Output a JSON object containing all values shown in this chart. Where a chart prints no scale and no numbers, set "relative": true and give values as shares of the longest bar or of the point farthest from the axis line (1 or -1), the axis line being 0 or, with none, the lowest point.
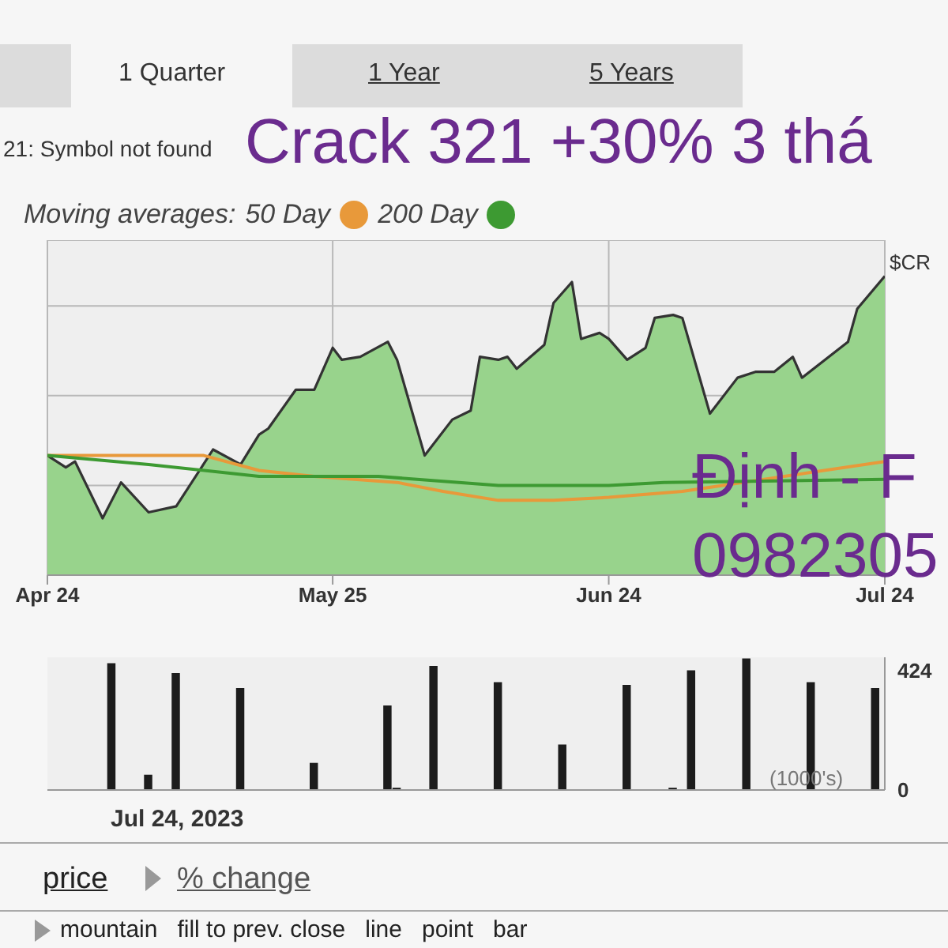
{
  "chart_data": [
    {
      "type": "area",
      "title": "Crack 321 +30% 3 thá",
      "relative": true,
      "legend_title": "Moving averages:",
      "legend": "top left",
      "grid": true,
      "marker": "none",
      "xlim": [
        "2023-04-24",
        "2023-07-24"
      ],
      "xticks": [
        {
          "value": "2023-04-24",
          "label": "Apr 24"
        },
        {
          "value": "2023-05-25",
          "label": "May 25"
        },
        {
          "value": "2023-06-24",
          "label": "Jun 24"
        },
        {
          "value": "2023-07-24",
          "label": "Jul 24"
        }
      ],
      "annotations": [
        "1 Quarter",
        "1 Year",
        "5 Years",
        "21: Symbol not found",
        "Định - F",
        "0982305"
      ],
      "series": [
        {
          "name": "$CR",
          "color": "#333333",
          "x": [
            "2023-04-24",
            "2023-04-26",
            "2023-04-27",
            "2023-04-30",
            "2023-05-02",
            "2023-05-05",
            "2023-05-08",
            "2023-05-12",
            "2023-05-15",
            "2023-05-17",
            "2023-05-18",
            "2023-05-21",
            "2023-05-23",
            "2023-05-25",
            "2023-05-26",
            "2023-05-28",
            "2023-05-31",
            "2023-06-01",
            "2023-06-04",
            "2023-06-07",
            "2023-06-09",
            "2023-06-10",
            "2023-06-12",
            "2023-06-13",
            "2023-06-14",
            "2023-06-17",
            "2023-06-18",
            "2023-06-20",
            "2023-06-21",
            "2023-06-23",
            "2023-06-24",
            "2023-06-26",
            "2023-06-28",
            "2023-06-29",
            "2023-07-01",
            "2023-07-02",
            "2023-07-05",
            "2023-07-08",
            "2023-07-10",
            "2023-07-12",
            "2023-07-14",
            "2023-07-15",
            "2023-07-20",
            "2023-07-21",
            "2023-07-24"
          ],
          "values": [
            0.4,
            0.36,
            0.38,
            0.19,
            0.31,
            0.21,
            0.23,
            0.42,
            0.37,
            0.47,
            0.49,
            0.62,
            0.62,
            0.76,
            0.72,
            0.73,
            0.78,
            0.72,
            0.4,
            0.52,
            0.55,
            0.73,
            0.72,
            0.73,
            0.69,
            0.77,
            0.91,
            0.98,
            0.79,
            0.81,
            0.79,
            0.72,
            0.76,
            0.86,
            0.87,
            0.86,
            0.54,
            0.66,
            0.68,
            0.68,
            0.73,
            0.66,
            0.78,
            0.89,
            1
          ]
        },
        {
          "name": "50 Day",
          "type": "line",
          "color": "#e8993a",
          "x": [
            "2023-04-24",
            "2023-05-11",
            "2023-05-17",
            "2023-05-23",
            "2023-06-01",
            "2023-06-06",
            "2023-06-12",
            "2023-06-18",
            "2023-06-24",
            "2023-07-02",
            "2023-07-24"
          ],
          "values": [
            0.4,
            0.4,
            0.35,
            0.33,
            0.31,
            0.28,
            0.25,
            0.25,
            0.26,
            0.28,
            0.38
          ]
        },
        {
          "name": "200 Day",
          "type": "line",
          "color": "#3d9a32",
          "x": [
            "2023-04-24",
            "2023-05-05",
            "2023-05-17",
            "2023-05-30",
            "2023-06-12",
            "2023-06-24",
            "2023-06-30",
            "2023-07-24"
          ],
          "values": [
            0.4,
            0.37,
            0.33,
            0.33,
            0.3,
            0.3,
            0.31,
            0.32
          ]
        }
      ]
    },
    {
      "type": "bar",
      "color": "#1c1c1c",
      "grid": false,
      "tick_labels": "y",
      "xlim": [
        "2023-04-24",
        "2023-07-24"
      ],
      "ylim": [
        0,
        470
      ],
      "yticks": [
        0,
        424
      ],
      "annotations": [
        "(1000's)",
        "Jul 24, 2023",
        "price",
        "% change",
        "mountain   fill to prev. close   line   point   bar"
      ],
      "x": [
        "2023-05-01",
        "2023-05-05",
        "2023-05-08",
        "2023-05-15",
        "2023-05-23",
        "2023-05-31",
        "2023-06-01",
        "2023-06-05",
        "2023-06-12",
        "2023-06-19",
        "2023-06-26",
        "2023-07-01",
        "2023-07-03",
        "2023-07-09",
        "2023-07-16",
        "2023-07-23"
      ],
      "values": [
        449,
        54,
        414,
        361,
        96,
        299,
        8,
        439,
        382,
        161,
        372,
        8,
        424,
        466,
        382,
        361
      ]
    }
  ]
}
